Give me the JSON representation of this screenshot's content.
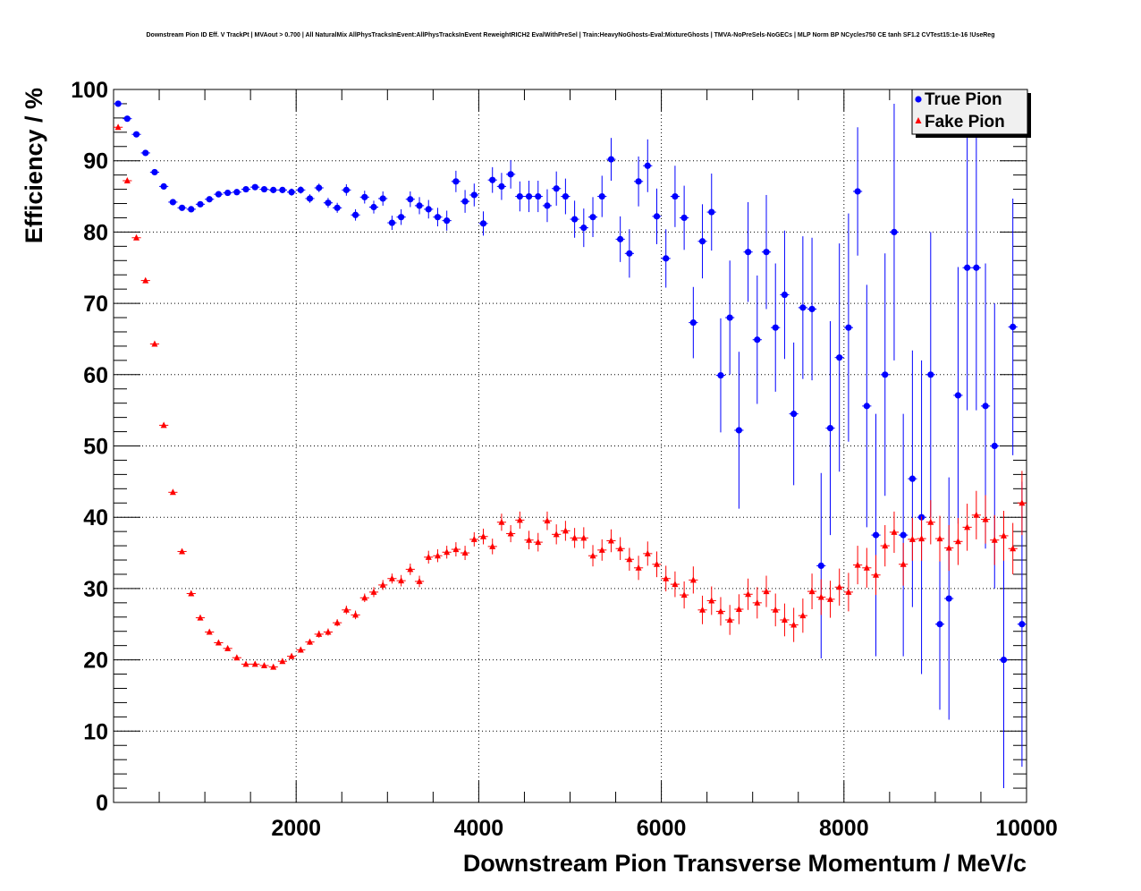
{
  "chart_data": {
    "type": "scatter",
    "title": "Downstream Pion ID Eff. V TrackPt | MVAout > 0.700 | All NaturalMix AllPhysTracksInEvent:AllPhysTracksInEvent ReweightRICH2 EvalWithPreSel | Train:HeavyNoGhosts-Eval:MixtureGhosts | TMVA-NoPreSels-NoGECs | MLP Norm BP NCycles750 CE tanh SF1.2 CVTest15:1e-16 !UseReg",
    "xlabel": "Downstream Pion Transverse Momentum / MeV/c",
    "ylabel": "Efficiency / %",
    "xlim": [
      0,
      10000
    ],
    "ylim": [
      0,
      100
    ],
    "xticks": [
      "2000",
      "4000",
      "6000",
      "8000",
      "10000"
    ],
    "yticks": [
      "0",
      "10",
      "20",
      "30",
      "40",
      "50",
      "60",
      "70",
      "80",
      "90",
      "100"
    ],
    "grid": true,
    "legend": "top-right",
    "bin_width": 100,
    "series": [
      {
        "name": "True Pion",
        "color": "#0000ff",
        "marker": "circle",
        "x": [
          50,
          150,
          250,
          350,
          450,
          550,
          650,
          750,
          850,
          950,
          1050,
          1150,
          1250,
          1350,
          1450,
          1550,
          1650,
          1750,
          1850,
          1950,
          2050,
          2150,
          2250,
          2350,
          2450,
          2550,
          2650,
          2750,
          2850,
          2950,
          3050,
          3150,
          3250,
          3350,
          3450,
          3550,
          3650,
          3750,
          3850,
          3950,
          4050,
          4150,
          4250,
          4350,
          4450,
          4550,
          4650,
          4750,
          4850,
          4950,
          5050,
          5150,
          5250,
          5350,
          5450,
          5550,
          5650,
          5750,
          5850,
          5950,
          6050,
          6150,
          6250,
          6350,
          6450,
          6550,
          6650,
          6750,
          6850,
          6950,
          7050,
          7150,
          7250,
          7350,
          7450,
          7550,
          7650,
          7750,
          7850,
          7950,
          8050,
          8150,
          8250,
          8350,
          8450,
          8550,
          8650,
          8750,
          8850,
          8950,
          9050,
          9150,
          9250,
          9350,
          9450,
          9550,
          9650,
          9750,
          9850,
          9950,
          10050
        ],
        "y": [
          98.0,
          95.9,
          93.7,
          91.1,
          88.4,
          86.4,
          84.2,
          83.4,
          83.2,
          83.9,
          84.6,
          85.3,
          85.5,
          85.6,
          86.0,
          86.3,
          86.0,
          85.9,
          85.9,
          85.6,
          85.9,
          84.7,
          86.2,
          84.1,
          83.4,
          85.9,
          82.4,
          84.9,
          83.5,
          84.7,
          81.3,
          82.1,
          84.6,
          83.7,
          83.2,
          82.1,
          81.6,
          87.1,
          84.3,
          85.2,
          81.2,
          87.3,
          86.4,
          88.1,
          85.0,
          85.0,
          85.0,
          83.7,
          86.1,
          85.0,
          81.8,
          80.6,
          82.1,
          85.0,
          90.2,
          79.0,
          77.0,
          87.1,
          89.3,
          82.2,
          76.3,
          85.0,
          82.0,
          67.3,
          78.7,
          82.8,
          59.9,
          68.0,
          52.2,
          77.2,
          64.9,
          77.2,
          66.6,
          71.2,
          54.5,
          69.4,
          69.2,
          33.2,
          52.5,
          62.4,
          66.6,
          85.7,
          55.6,
          37.5,
          60.0,
          80.0,
          37.5,
          45.4,
          40.0,
          60.0,
          25.0,
          28.6,
          57.1,
          75.0,
          75.0,
          55.6,
          50.0,
          20.0,
          66.7,
          25.0,
          null
        ],
        "err": [
          0.3,
          0.4,
          0.4,
          0.4,
          0.4,
          0.4,
          0.4,
          0.4,
          0.4,
          0.4,
          0.4,
          0.4,
          0.4,
          0.4,
          0.4,
          0.4,
          0.4,
          0.4,
          0.4,
          0.5,
          0.5,
          0.6,
          0.6,
          0.7,
          0.7,
          0.8,
          0.8,
          0.9,
          0.9,
          1.0,
          1.0,
          1.1,
          1.1,
          1.2,
          1.3,
          1.3,
          1.4,
          1.5,
          1.6,
          1.6,
          1.7,
          1.8,
          1.9,
          2.0,
          2.1,
          2.2,
          2.2,
          2.3,
          2.4,
          2.5,
          2.6,
          2.7,
          2.8,
          2.9,
          3.0,
          3.2,
          3.4,
          3.5,
          3.7,
          3.9,
          4.1,
          4.3,
          4.5,
          5.0,
          5.2,
          5.4,
          8.0,
          8.0,
          11.0,
          7.0,
          9.0,
          8.0,
          9.0,
          9.0,
          10.0,
          10.0,
          10.0,
          13.0,
          15.0,
          16.0,
          16.0,
          9.0,
          17.0,
          17.0,
          17.0,
          18.0,
          17.0,
          18.0,
          22.0,
          20.0,
          12.0,
          17.0,
          18.0,
          20.0,
          20.0,
          20.0,
          20.0,
          18.0,
          18.0,
          20.0,
          0
        ]
      },
      {
        "name": "Fake Pion",
        "color": "#ff0000",
        "marker": "triangle",
        "x": [
          50,
          150,
          250,
          350,
          450,
          550,
          650,
          750,
          850,
          950,
          1050,
          1150,
          1250,
          1350,
          1450,
          1550,
          1650,
          1750,
          1850,
          1950,
          2050,
          2150,
          2250,
          2350,
          2450,
          2550,
          2650,
          2750,
          2850,
          2950,
          3050,
          3150,
          3250,
          3350,
          3450,
          3550,
          3650,
          3750,
          3850,
          3950,
          4050,
          4150,
          4250,
          4350,
          4450,
          4550,
          4650,
          4750,
          4850,
          4950,
          5050,
          5150,
          5250,
          5350,
          5450,
          5550,
          5650,
          5750,
          5850,
          5950,
          6050,
          6150,
          6250,
          6350,
          6450,
          6550,
          6650,
          6750,
          6850,
          6950,
          7050,
          7150,
          7250,
          7350,
          7450,
          7550,
          7650,
          7750,
          7850,
          7950,
          8050,
          8150,
          8250,
          8350,
          8450,
          8550,
          8650,
          8750,
          8850,
          8950,
          9050,
          9150,
          9250,
          9350,
          9450,
          9550,
          9650,
          9750,
          9850,
          9950,
          10050
        ],
        "y": [
          94.7,
          87.2,
          79.2,
          73.2,
          64.3,
          52.9,
          43.5,
          35.2,
          29.3,
          25.9,
          23.9,
          22.4,
          21.6,
          20.3,
          19.4,
          19.4,
          19.2,
          19.0,
          19.8,
          20.5,
          21.4,
          22.5,
          23.6,
          23.9,
          25.2,
          27.0,
          26.3,
          28.7,
          29.5,
          30.5,
          31.4,
          31.1,
          32.7,
          31.0,
          34.4,
          34.6,
          35.1,
          35.5,
          35.0,
          36.9,
          37.3,
          35.9,
          39.3,
          37.7,
          39.6,
          36.8,
          36.5,
          39.5,
          37.6,
          38.1,
          37.1,
          37.1,
          34.6,
          35.4,
          36.7,
          35.6,
          34.1,
          32.9,
          34.9,
          33.4,
          31.4,
          30.6,
          29.1,
          31.2,
          27.0,
          28.3,
          26.8,
          25.6,
          27.1,
          29.2,
          28.0,
          29.6,
          27.0,
          25.6,
          24.9,
          26.2,
          29.6,
          28.8,
          28.5,
          30.2,
          29.5,
          33.3,
          32.9,
          31.9,
          36.0,
          37.9,
          33.4,
          36.9,
          37.0,
          39.3,
          37.0,
          35.7,
          36.6,
          38.6,
          40.3,
          39.7,
          36.8,
          37.4,
          35.6,
          42.0,
          null
        ],
        "err": [
          0.3,
          0.3,
          0.3,
          0.3,
          0.3,
          0.3,
          0.3,
          0.3,
          0.3,
          0.3,
          0.3,
          0.3,
          0.3,
          0.3,
          0.3,
          0.3,
          0.3,
          0.3,
          0.3,
          0.4,
          0.4,
          0.4,
          0.5,
          0.5,
          0.5,
          0.6,
          0.6,
          0.6,
          0.7,
          0.7,
          0.7,
          0.8,
          0.8,
          0.8,
          0.9,
          0.9,
          0.9,
          1.0,
          1.0,
          1.0,
          1.1,
          1.1,
          1.2,
          1.2,
          1.2,
          1.3,
          1.3,
          1.3,
          1.4,
          1.4,
          1.4,
          1.5,
          1.5,
          1.5,
          1.6,
          1.6,
          1.6,
          1.7,
          1.7,
          1.8,
          1.8,
          1.8,
          1.9,
          1.9,
          2.0,
          2.0,
          2.0,
          2.1,
          2.1,
          2.2,
          2.2,
          2.2,
          2.3,
          2.3,
          2.4,
          2.4,
          2.5,
          2.5,
          2.6,
          2.6,
          2.7,
          2.7,
          2.8,
          2.8,
          2.9,
          2.9,
          3.0,
          3.0,
          3.1,
          3.1,
          3.2,
          3.2,
          3.3,
          3.3,
          3.4,
          3.4,
          3.5,
          3.5,
          3.6,
          4.5,
          0
        ]
      }
    ]
  }
}
